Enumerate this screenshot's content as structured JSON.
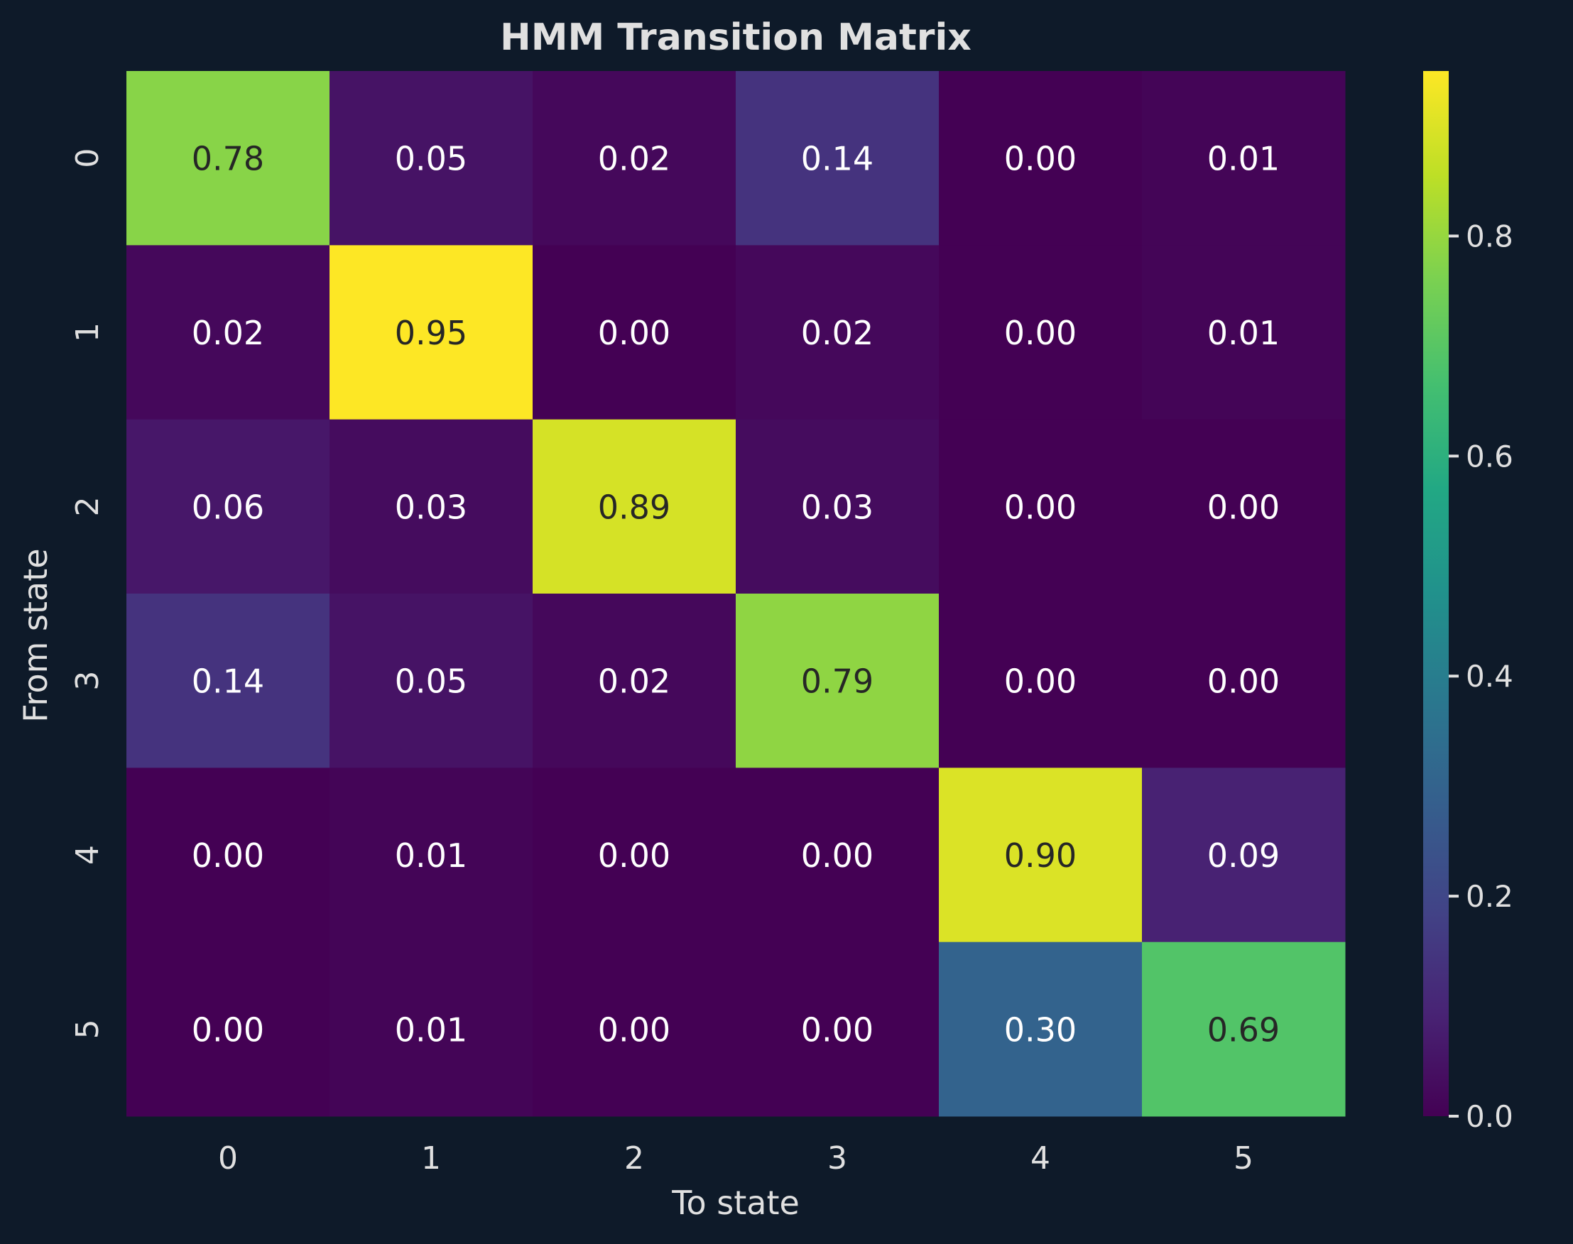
{
  "chart_data": {
    "type": "heatmap",
    "title": "HMM Transition Matrix",
    "xlabel": "To state",
    "ylabel": "From state",
    "x_categories": [
      "0",
      "1",
      "2",
      "3",
      "4",
      "5"
    ],
    "y_categories": [
      "0",
      "1",
      "2",
      "3",
      "4",
      "5"
    ],
    "values": [
      [
        0.78,
        0.05,
        0.02,
        0.14,
        0.0,
        0.01
      ],
      [
        0.02,
        0.95,
        0.0,
        0.02,
        0.0,
        0.01
      ],
      [
        0.06,
        0.03,
        0.89,
        0.03,
        0.0,
        0.0
      ],
      [
        0.14,
        0.05,
        0.02,
        0.79,
        0.0,
        0.0
      ],
      [
        0.0,
        0.01,
        0.0,
        0.0,
        0.9,
        0.09
      ],
      [
        0.0,
        0.01,
        0.0,
        0.0,
        0.3,
        0.69
      ]
    ],
    "colormap": "viridis",
    "colorbar": {
      "range": [
        0.0,
        0.95
      ],
      "ticks": [
        0.0,
        0.2,
        0.4,
        0.6,
        0.8
      ],
      "tick_labels": [
        "0.0",
        "0.2",
        "0.4",
        "0.6",
        "0.8"
      ]
    },
    "value_format": "2 decimals",
    "colors": {
      "background": "#0e1a29",
      "text": "#e0e0e0",
      "annotation_dark": "#262626",
      "annotation_light": "#ffffff"
    }
  }
}
